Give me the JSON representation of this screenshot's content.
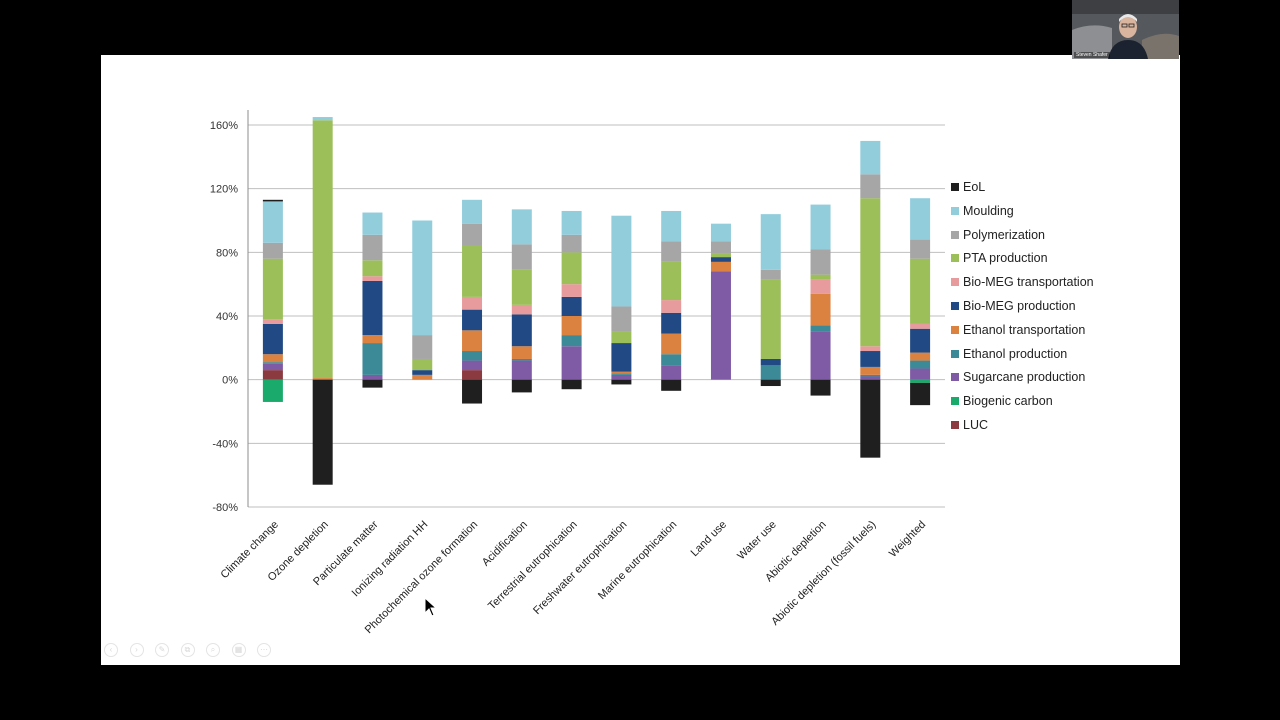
{
  "video": {
    "speaker_name": "Steven Shafer"
  },
  "presentation_controls": [
    "prev-icon",
    "next-icon",
    "pen-icon",
    "copy-icon",
    "zoom-icon",
    "grid-icon",
    "more-icon"
  ],
  "chart_data": {
    "type": "bar",
    "stacked": true,
    "title": "",
    "xlabel": "",
    "ylabel": "",
    "ylim": [
      -80,
      160
    ],
    "yticks": [
      -80,
      -40,
      0,
      40,
      80,
      120,
      160
    ],
    "ytick_labels": [
      "-80%",
      "-40%",
      "0%",
      "40%",
      "80%",
      "120%",
      "160%"
    ],
    "grid": true,
    "legend_position": "right",
    "categories": [
      "Climate change",
      "Ozone depletion",
      "Particulate matter",
      "Ionizing radiation HH",
      "Photochemical ozone formation",
      "Acidification",
      "Terrestrial eutrophication",
      "Freshwater eutrophication",
      "Marine eutrophication",
      "Land use",
      "Water use",
      "Abiotic depletion",
      "Abiotic depletion (fossil fuels)",
      "Weighted"
    ],
    "series": [
      {
        "name": "LUC",
        "color": "#8b3a3f",
        "values": [
          6,
          0,
          0,
          0,
          6,
          0,
          0,
          0,
          0,
          0,
          0,
          0,
          0,
          0
        ]
      },
      {
        "name": "Biogenic carbon",
        "color": "#1aaa6b",
        "values": [
          -14,
          0,
          0,
          0,
          0,
          0,
          0,
          0,
          0,
          0,
          0,
          0,
          0,
          -2
        ]
      },
      {
        "name": "Sugarcane production",
        "color": "#7f5ba6",
        "values": [
          4,
          0,
          3,
          0,
          6,
          12,
          21,
          3,
          9,
          68,
          0,
          30,
          2,
          7
        ]
      },
      {
        "name": "Ethanol production",
        "color": "#3c8a98",
        "values": [
          1,
          0,
          20,
          0,
          6,
          1,
          7,
          1,
          7,
          0,
          9,
          4,
          1,
          5
        ]
      },
      {
        "name": "Ethanol transportation",
        "color": "#db8240",
        "values": [
          5,
          1,
          5,
          3,
          13,
          8,
          12,
          1,
          13,
          6,
          0,
          20,
          5,
          5
        ]
      },
      {
        "name": "Bio-MEG production",
        "color": "#214a84",
        "values": [
          19,
          0,
          34,
          3,
          13,
          20,
          12,
          18,
          13,
          3,
          4,
          0,
          10,
          15
        ]
      },
      {
        "name": "Bio-MEG transportation",
        "color": "#e79b9c",
        "values": [
          3,
          0,
          3,
          0,
          8,
          6,
          8,
          0,
          8,
          0,
          0,
          9,
          3,
          3
        ]
      },
      {
        "name": "PTA production",
        "color": "#9cbf5a",
        "values": [
          38,
          162,
          10,
          7,
          32,
          22,
          20,
          7,
          24,
          2,
          50,
          3,
          93,
          41
        ]
      },
      {
        "name": "Polymerization",
        "color": "#a6a6a6",
        "values": [
          10,
          0,
          16,
          15,
          14,
          16,
          11,
          16,
          13,
          8,
          6,
          16,
          15,
          12
        ]
      },
      {
        "name": "Moulding",
        "color": "#92cddc",
        "values": [
          26,
          2,
          14,
          72,
          15,
          22,
          15,
          57,
          19,
          11,
          35,
          28,
          21,
          26
        ]
      },
      {
        "name": "EoL",
        "color": "#1f1f1f",
        "values": [
          1,
          -66,
          -5,
          0,
          -15,
          -8,
          -6,
          -3,
          -7,
          0,
          -4,
          -10,
          -49,
          -14
        ]
      }
    ]
  }
}
